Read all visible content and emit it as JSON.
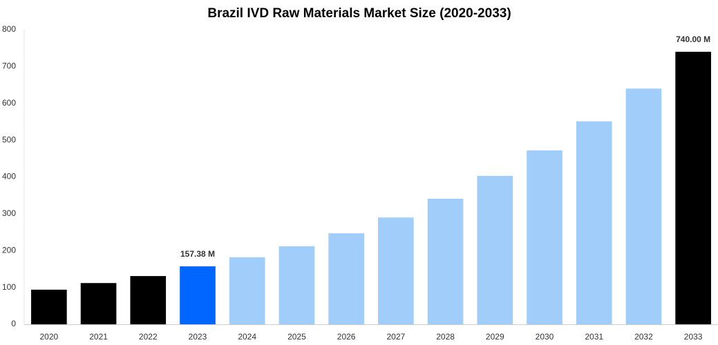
{
  "chart_data": {
    "type": "bar",
    "title": "Brazil IVD Raw Materials Market Size (2020-2033)",
    "categories": [
      "2020",
      "2021",
      "2022",
      "2023",
      "2024",
      "2025",
      "2026",
      "2027",
      "2028",
      "2029",
      "2030",
      "2031",
      "2032",
      "2033"
    ],
    "values": [
      94,
      112,
      131,
      157.38,
      182,
      212,
      247,
      290,
      341,
      403,
      472,
      551,
      640,
      740
    ],
    "value_labels": [
      null,
      null,
      null,
      "157.38 M",
      null,
      null,
      null,
      null,
      null,
      null,
      null,
      null,
      null,
      "740.00 M"
    ],
    "colors": [
      "#000000",
      "#000000",
      "#000000",
      "#0066ff",
      "#a1cdfb",
      "#a1cdfb",
      "#a1cdfb",
      "#a1cdfb",
      "#a1cdfb",
      "#a1cdfb",
      "#a1cdfb",
      "#a1cdfb",
      "#a1cdfb",
      "#000000"
    ],
    "ylim": [
      0,
      800
    ],
    "yticks": [
      0,
      100,
      200,
      300,
      400,
      500,
      600,
      700,
      800
    ],
    "grid": false
  }
}
